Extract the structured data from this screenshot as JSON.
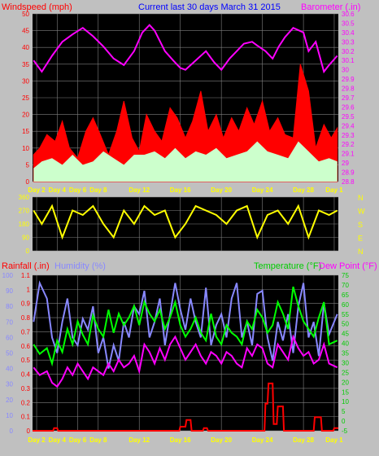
{
  "colors": {
    "page_bg": "#c0c0c0",
    "plot_bg": "#000000",
    "grid": "#808080",
    "windspeed": "#ff0000",
    "gust_fill": "#ffffff",
    "wind_fill": "#ccffcc",
    "barometer": "#ff00ff",
    "direction": "#ffff00",
    "rainfall": "#ff0000",
    "humidity": "#8888ff",
    "temperature": "#00ff00",
    "dewpoint": "#ff00ff",
    "title": "#0000ff",
    "day_axis": "#ffff00"
  },
  "chart_data": [
    {
      "type": "area",
      "title": "Current last 30 days March 31 2015",
      "left_label": "Windspeed (mph)",
      "right_label": "Barometer (.in)",
      "left_ticks": [
        "50",
        "45",
        "40",
        "35",
        "30",
        "25",
        "20",
        "15",
        "10",
        "5",
        "0"
      ],
      "right_ticks": [
        "30.6",
        "30.5",
        "30.4",
        "30.3",
        "30.2",
        "30.1",
        "30",
        "29.9",
        "29.8",
        "29.7",
        "29.6",
        "29.5",
        "29.4",
        "29.3",
        "29.2",
        "29.1",
        "29",
        "28.9",
        "28.8"
      ],
      "ylim_left": [
        0,
        50
      ],
      "ylim_right": [
        28.8,
        30.6
      ],
      "x_ticks": [
        "Day 2",
        "Day 4",
        "Day 6",
        "Day 8",
        "Day 12",
        "Day 16",
        "Day 20",
        "Day 24",
        "Day 28",
        "Day 1"
      ],
      "x_tick_days": [
        2,
        4,
        6,
        8,
        12,
        16,
        20,
        24,
        28,
        31
      ],
      "xlim_days": [
        1.6,
        31.4
      ],
      "grid": true,
      "series": [
        {
          "name": "Barometer",
          "x": [
            1.7,
            2.5,
            3.5,
            4.5,
            5.5,
            6.5,
            7.5,
            8.5,
            9.5,
            10.5,
            11.5,
            12.3,
            13.0,
            13.5,
            14.5,
            15.3,
            16.0,
            16.5,
            17.5,
            18.5,
            19.3,
            20.0,
            20.8,
            21.5,
            22.2,
            23.0,
            23.5,
            24.3,
            25.0,
            25.6,
            26.2,
            27.0,
            28.0,
            28.5,
            29.2,
            30.0,
            30.5,
            31.3
          ],
          "values": [
            30.1,
            29.98,
            30.15,
            30.3,
            30.38,
            30.45,
            30.36,
            30.25,
            30.12,
            30.05,
            30.2,
            30.4,
            30.48,
            30.42,
            30.2,
            30.1,
            30.02,
            30.0,
            30.1,
            30.2,
            30.08,
            30.0,
            30.12,
            30.2,
            30.28,
            30.3,
            30.26,
            30.2,
            30.12,
            30.25,
            30.35,
            30.45,
            30.4,
            30.2,
            30.3,
            29.98,
            30.05,
            30.15
          ]
        },
        {
          "name": "Windspeed",
          "x": [
            1.7,
            2.3,
            3.0,
            3.8,
            4.5,
            5.2,
            6.0,
            6.8,
            7.5,
            8.2,
            9.0,
            9.8,
            10.5,
            11.3,
            12.0,
            12.7,
            13.5,
            14.2,
            15.0,
            15.7,
            16.5,
            17.2,
            18.0,
            18.7,
            19.5,
            20.2,
            21.0,
            21.7,
            22.5,
            23.2,
            24.0,
            24.7,
            25.5,
            26.2,
            27.0,
            27.7,
            28.5,
            29.2,
            30.0,
            30.7,
            31.3
          ],
          "values": [
            8,
            10,
            14,
            12,
            18,
            10,
            7,
            15,
            19,
            14,
            8,
            15,
            24,
            13,
            9,
            20,
            15,
            12,
            22,
            19,
            13,
            18,
            27,
            15,
            20,
            13,
            19,
            15,
            22,
            17,
            24,
            15,
            19,
            14,
            13,
            35,
            27,
            10,
            17,
            13,
            16
          ]
        },
        {
          "name": "Average",
          "x": [
            1.7,
            2.5,
            3.5,
            4.5,
            5.5,
            6.5,
            7.5,
            8.5,
            9.5,
            10.5,
            11.5,
            12.5,
            13.5,
            14.5,
            15.5,
            16.5,
            17.5,
            18.5,
            19.5,
            20.5,
            21.5,
            22.5,
            23.5,
            24.5,
            25.5,
            26.5,
            27.5,
            28.5,
            29.5,
            30.5,
            31.3
          ],
          "values": [
            4,
            6,
            7,
            5,
            8,
            5,
            6,
            9,
            7,
            5,
            8,
            8,
            9,
            7,
            10,
            7,
            9,
            8,
            10,
            7,
            8,
            9,
            12,
            9,
            8,
            7,
            12,
            9,
            6,
            7,
            6
          ]
        },
        {
          "name": "Direction",
          "x": [
            1.7,
            2.5,
            3.5,
            4.5,
            5.5,
            6.5,
            7.5,
            8.5,
            9.5,
            10.5,
            11.5,
            12.5,
            13.5,
            14.5,
            15.5,
            16.5,
            17.5,
            18.5,
            19.5,
            20.5,
            21.5,
            22.5,
            23.5,
            24.5,
            25.5,
            26.5,
            27.5,
            28.5,
            29.5,
            30.5,
            31.3
          ],
          "values": [
            270,
            180,
            300,
            90,
            270,
            240,
            300,
            180,
            90,
            270,
            180,
            300,
            240,
            270,
            90,
            180,
            300,
            270,
            240,
            180,
            270,
            300,
            90,
            240,
            270,
            180,
            300,
            90,
            270,
            240,
            270
          ]
        }
      ]
    },
    {
      "type": "line",
      "direction_labels": [
        "N",
        "W",
        "S",
        "E",
        "N"
      ],
      "left_ticks": [
        "360",
        "270",
        "180",
        "90",
        "0"
      ],
      "ylim": [
        0,
        360
      ]
    },
    {
      "type": "line",
      "left_label_rain": "Rainfall (.in)",
      "left_label_humidity": "Humidity (%)",
      "right_label_temperature": "Temperature (°F)",
      "right_label_dewpoint": "Dew Point (°F)",
      "rain_ticks": [
        "1.1",
        "1",
        "0.9",
        "0.8",
        "0.7",
        "0.6",
        "0.5",
        "0.4",
        "0.3",
        "0.2",
        "0.1",
        "0"
      ],
      "humidity_ticks": [
        "100",
        "90",
        "80",
        "70",
        "60",
        "50",
        "40",
        "30",
        "20",
        "10",
        "0"
      ],
      "temp_ticks": [
        "75",
        "70",
        "65",
        "60",
        "55",
        "50",
        "45",
        "40",
        "35",
        "30",
        "25",
        "20",
        "15",
        "10",
        "5",
        "0",
        "-5"
      ],
      "ylim_rain": [
        0,
        1.15
      ],
      "ylim_humidity": [
        0,
        100
      ],
      "ylim_temperature": [
        -5,
        76
      ],
      "series": [
        {
          "name": "Humidity",
          "x": [
            1.7,
            2.3,
            3.0,
            3.5,
            4.0,
            4.5,
            5.0,
            5.5,
            6.0,
            6.5,
            7.0,
            7.5,
            8.0,
            8.5,
            9.0,
            9.5,
            10.0,
            10.5,
            11.0,
            11.5,
            12.0,
            12.5,
            13.0,
            13.5,
            14.0,
            14.5,
            15.0,
            15.5,
            16.0,
            16.5,
            17.0,
            17.5,
            18.0,
            18.5,
            19.0,
            19.5,
            20.0,
            20.5,
            21.0,
            21.5,
            22.0,
            22.5,
            23.0,
            23.5,
            24.0,
            24.5,
            25.0,
            25.5,
            26.0,
            26.5,
            27.0,
            27.5,
            28.0,
            28.5,
            29.0,
            29.5,
            30.0,
            30.5,
            31.3
          ],
          "values": [
            70,
            95,
            85,
            60,
            50,
            70,
            85,
            60,
            55,
            72,
            65,
            80,
            50,
            60,
            40,
            55,
            45,
            70,
            60,
            80,
            75,
            90,
            60,
            70,
            85,
            55,
            75,
            95,
            78,
            65,
            85,
            70,
            60,
            92,
            55,
            68,
            75,
            60,
            85,
            95,
            60,
            70,
            55,
            88,
            90,
            60,
            45,
            70,
            58,
            75,
            50,
            80,
            95,
            60,
            70,
            48,
            82,
            62,
            75
          ]
        },
        {
          "name": "Temperature",
          "x": [
            1.7,
            2.3,
            3.0,
            3.5,
            4.0,
            4.5,
            5.0,
            5.5,
            6.0,
            6.5,
            7.0,
            7.5,
            8.0,
            8.5,
            9.0,
            9.5,
            10.0,
            10.5,
            11.0,
            11.5,
            12.0,
            12.5,
            13.0,
            13.5,
            14.0,
            14.5,
            15.0,
            15.5,
            16.0,
            16.5,
            17.0,
            17.5,
            18.0,
            18.5,
            19.0,
            19.5,
            20.0,
            20.5,
            21.0,
            21.5,
            22.0,
            22.5,
            23.0,
            23.5,
            24.0,
            24.5,
            25.0,
            25.5,
            26.0,
            26.5,
            27.0,
            27.5,
            28.0,
            28.5,
            29.0,
            29.5,
            30.0,
            30.5,
            31.3
          ],
          "values": [
            40,
            35,
            38,
            30,
            42,
            36,
            48,
            40,
            52,
            45,
            40,
            55,
            48,
            44,
            58,
            46,
            56,
            50,
            54,
            60,
            50,
            62,
            56,
            52,
            58,
            48,
            54,
            62,
            50,
            44,
            48,
            54,
            46,
            42,
            56,
            44,
            40,
            50,
            46,
            44,
            40,
            52,
            48,
            58,
            54,
            46,
            50,
            62,
            56,
            48,
            70,
            60,
            52,
            48,
            44,
            54,
            62,
            40,
            42
          ]
        },
        {
          "name": "Dew Point",
          "x": [
            1.7,
            2.3,
            3.0,
            3.5,
            4.0,
            4.5,
            5.0,
            5.5,
            6.0,
            6.5,
            7.0,
            7.5,
            8.0,
            8.5,
            9.0,
            9.5,
            10.0,
            10.5,
            11.0,
            11.5,
            12.0,
            12.5,
            13.0,
            13.5,
            14.0,
            14.5,
            15.0,
            15.5,
            16.0,
            16.5,
            17.0,
            17.5,
            18.0,
            18.5,
            19.0,
            19.5,
            20.0,
            20.5,
            21.0,
            21.5,
            22.0,
            22.5,
            23.0,
            23.5,
            24.0,
            24.5,
            25.0,
            25.5,
            26.0,
            26.5,
            27.0,
            27.5,
            28.0,
            28.5,
            29.0,
            29.5,
            30.0,
            30.5,
            31.3
          ],
          "values": [
            28,
            24,
            26,
            20,
            18,
            22,
            28,
            24,
            30,
            26,
            22,
            28,
            26,
            24,
            30,
            26,
            32,
            28,
            30,
            34,
            26,
            40,
            36,
            30,
            38,
            32,
            40,
            44,
            38,
            32,
            36,
            40,
            34,
            30,
            36,
            34,
            30,
            36,
            34,
            30,
            28,
            38,
            34,
            40,
            38,
            30,
            28,
            40,
            36,
            32,
            44,
            38,
            34,
            36,
            30,
            32,
            40,
            30,
            28
          ]
        },
        {
          "name": "Rainfall",
          "x": [
            1.6,
            3.6,
            3.7,
            4.0,
            4.1,
            15.9,
            16.0,
            16.5,
            16.6,
            17.0,
            17.1,
            18.2,
            18.3,
            18.6,
            18.7,
            24.2,
            24.3,
            24.5,
            24.6,
            25.0,
            25.1,
            25.4,
            25.5,
            26.0,
            26.1,
            29.0,
            29.1,
            29.7,
            29.8,
            30.9,
            31.0,
            31.4
          ],
          "values": [
            0,
            0,
            0.02,
            0.02,
            0,
            0,
            0.03,
            0.03,
            0.08,
            0.08,
            0,
            0,
            0.02,
            0.02,
            0,
            0,
            0.2,
            0.2,
            0.35,
            0.35,
            0.05,
            0.05,
            0.18,
            0.18,
            0,
            0,
            0.1,
            0.1,
            0,
            0,
            0.02,
            0.02
          ]
        }
      ]
    }
  ]
}
